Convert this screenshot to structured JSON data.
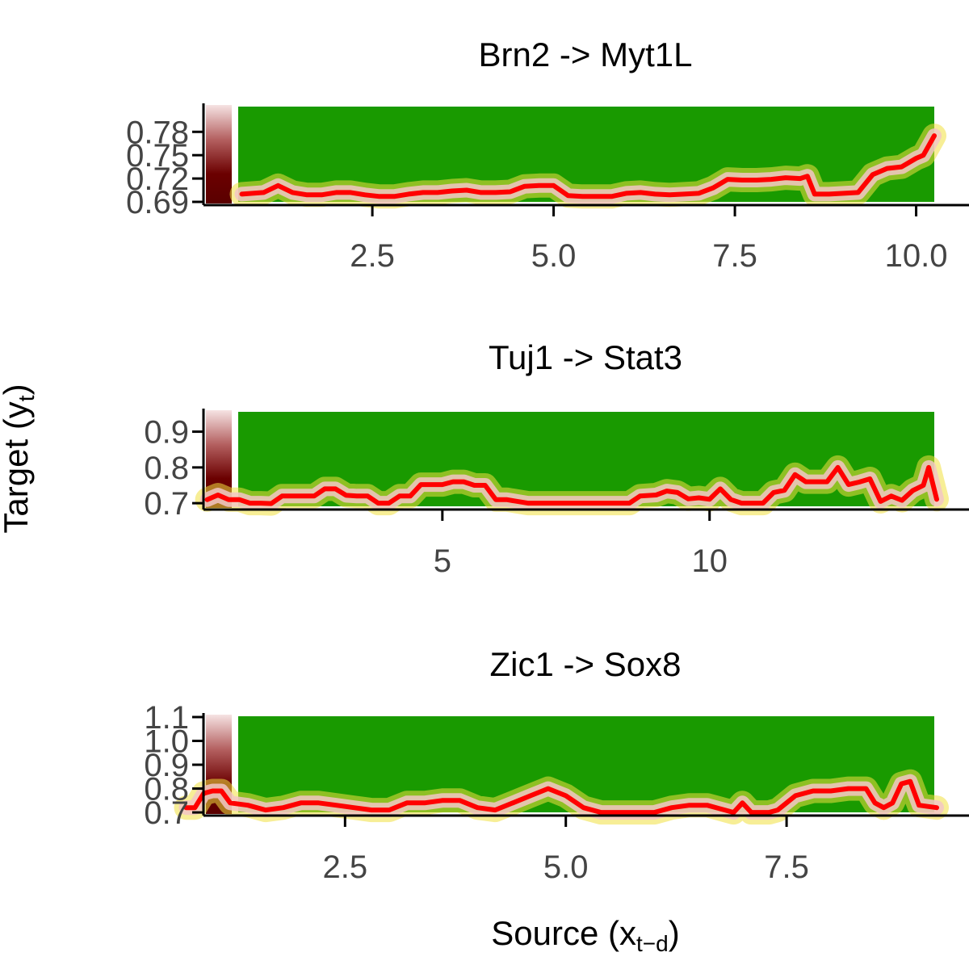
{
  "x_axis_title": "Source (x",
  "x_axis_title_sub": "t−d",
  "x_axis_title_end": ")",
  "y_axis_title": "Target (y",
  "y_axis_title_sub": "t",
  "y_axis_title_end": ")",
  "colors": {
    "heatmap_green": "#199a00",
    "density_yellow": "#e8e432",
    "curve_red": "#ff0000",
    "marginal_dark_red": "#6b0000"
  },
  "chart_data": [
    {
      "type": "heatmap",
      "title": "Brn2 -> Myt1L",
      "xlim": [
        0.65,
        10.25
      ],
      "ylim": [
        0.69,
        0.8
      ],
      "x_ticks": [
        2.5,
        5.0,
        7.5,
        10.0
      ],
      "x_tick_labels": [
        "2.5",
        "5.0",
        "7.5",
        "10.0"
      ],
      "y_ticks": [
        0.69,
        0.72,
        0.75,
        0.78
      ],
      "y_tick_labels": [
        "0.69",
        "0.72",
        "0.75",
        "0.78"
      ],
      "series": [
        {
          "x": [
            0.7,
            1.0,
            1.2,
            1.4,
            1.6,
            1.8,
            2.0,
            2.2,
            2.4,
            2.6,
            2.8,
            3.0,
            3.2,
            3.4,
            3.6,
            3.8,
            4.0,
            4.2,
            4.4,
            4.6,
            4.8,
            5.0,
            5.2,
            5.4,
            5.6,
            5.8,
            6.0,
            6.2,
            6.4,
            6.6,
            6.8,
            7.0,
            7.2,
            7.4,
            7.6,
            7.8,
            8.0,
            8.2,
            8.4,
            8.5,
            8.6,
            8.8,
            9.0,
            9.2,
            9.4,
            9.6,
            9.8,
            10.0,
            10.1,
            10.25
          ],
          "y": [
            0.7,
            0.702,
            0.711,
            0.702,
            0.699,
            0.699,
            0.702,
            0.702,
            0.699,
            0.697,
            0.697,
            0.7,
            0.702,
            0.702,
            0.704,
            0.705,
            0.702,
            0.702,
            0.703,
            0.71,
            0.711,
            0.711,
            0.698,
            0.697,
            0.697,
            0.697,
            0.701,
            0.702,
            0.7,
            0.699,
            0.7,
            0.701,
            0.708,
            0.719,
            0.718,
            0.718,
            0.719,
            0.721,
            0.72,
            0.723,
            0.7,
            0.7,
            0.701,
            0.702,
            0.725,
            0.733,
            0.735,
            0.746,
            0.75,
            0.775
          ]
        }
      ]
    },
    {
      "type": "heatmap",
      "title": "Tuj1 -> Stat3",
      "xlim": [
        0.5,
        14.25
      ],
      "ylim": [
        0.68,
        0.96
      ],
      "x_ticks": [
        5,
        10
      ],
      "x_tick_labels": [
        "5",
        "10"
      ],
      "y_ticks": [
        0.7,
        0.8,
        0.9
      ],
      "y_tick_labels": [
        "0.7",
        "0.8",
        "0.9"
      ],
      "series": [
        {
          "x": [
            0.6,
            0.8,
            1.0,
            1.2,
            1.4,
            1.6,
            1.8,
            2.0,
            2.2,
            2.4,
            2.6,
            2.8,
            3.0,
            3.2,
            3.4,
            3.6,
            3.8,
            4.0,
            4.2,
            4.4,
            4.6,
            4.8,
            5.0,
            5.2,
            5.4,
            5.6,
            5.8,
            6.0,
            6.2,
            6.6,
            7.0,
            7.5,
            8.0,
            8.5,
            8.7,
            9.0,
            9.2,
            9.4,
            9.6,
            9.8,
            10.0,
            10.2,
            10.4,
            10.6,
            10.8,
            11.0,
            11.2,
            11.4,
            11.6,
            11.8,
            12.0,
            12.2,
            12.4,
            12.6,
            12.8,
            13.0,
            13.2,
            13.4,
            13.6,
            13.8,
            14.0,
            14.1,
            14.25
          ],
          "y": [
            0.71,
            0.723,
            0.71,
            0.71,
            0.7,
            0.7,
            0.699,
            0.72,
            0.72,
            0.72,
            0.72,
            0.74,
            0.74,
            0.722,
            0.72,
            0.72,
            0.7,
            0.7,
            0.72,
            0.72,
            0.752,
            0.752,
            0.752,
            0.76,
            0.76,
            0.75,
            0.75,
            0.71,
            0.71,
            0.7,
            0.7,
            0.7,
            0.7,
            0.7,
            0.72,
            0.723,
            0.734,
            0.73,
            0.712,
            0.715,
            0.711,
            0.74,
            0.71,
            0.7,
            0.7,
            0.7,
            0.73,
            0.736,
            0.78,
            0.76,
            0.76,
            0.76,
            0.8,
            0.752,
            0.759,
            0.768,
            0.705,
            0.72,
            0.708,
            0.735,
            0.75,
            0.8,
            0.711
          ]
        }
      ]
    },
    {
      "type": "heatmap",
      "title": "Zic1 -> Sox8",
      "xlim": [
        0.65,
        9.2
      ],
      "ylim": [
        0.68,
        1.1
      ],
      "x_ticks": [
        2.5,
        5.0,
        7.5
      ],
      "x_tick_labels": [
        "2.5",
        "5.0",
        "7.5"
      ],
      "y_ticks": [
        0.7,
        0.8,
        0.9,
        1.0,
        1.1
      ],
      "y_tick_labels": [
        "0.7",
        "0.8",
        "0.9",
        "1.0",
        "1.1"
      ],
      "series": [
        {
          "x": [
            0.7,
            0.8,
            0.9,
            1.0,
            1.1,
            1.2,
            1.4,
            1.6,
            1.8,
            2.0,
            2.2,
            2.4,
            2.6,
            2.8,
            3.0,
            3.2,
            3.4,
            3.6,
            3.8,
            4.0,
            4.2,
            4.4,
            4.6,
            4.8,
            5.0,
            5.2,
            5.4,
            5.6,
            5.8,
            6.0,
            6.2,
            6.4,
            6.6,
            6.8,
            6.9,
            7.0,
            7.1,
            7.2,
            7.3,
            7.4,
            7.6,
            7.8,
            8.0,
            8.2,
            8.4,
            8.5,
            8.6,
            8.7,
            8.8,
            8.9,
            9.0,
            9.2
          ],
          "y": [
            0.72,
            0.72,
            0.78,
            0.79,
            0.79,
            0.74,
            0.73,
            0.71,
            0.72,
            0.74,
            0.74,
            0.73,
            0.72,
            0.71,
            0.71,
            0.74,
            0.74,
            0.75,
            0.75,
            0.72,
            0.71,
            0.74,
            0.77,
            0.8,
            0.77,
            0.72,
            0.7,
            0.7,
            0.7,
            0.7,
            0.72,
            0.73,
            0.73,
            0.71,
            0.7,
            0.74,
            0.7,
            0.7,
            0.7,
            0.71,
            0.77,
            0.79,
            0.79,
            0.8,
            0.8,
            0.74,
            0.72,
            0.74,
            0.82,
            0.83,
            0.73,
            0.72
          ]
        }
      ]
    }
  ]
}
